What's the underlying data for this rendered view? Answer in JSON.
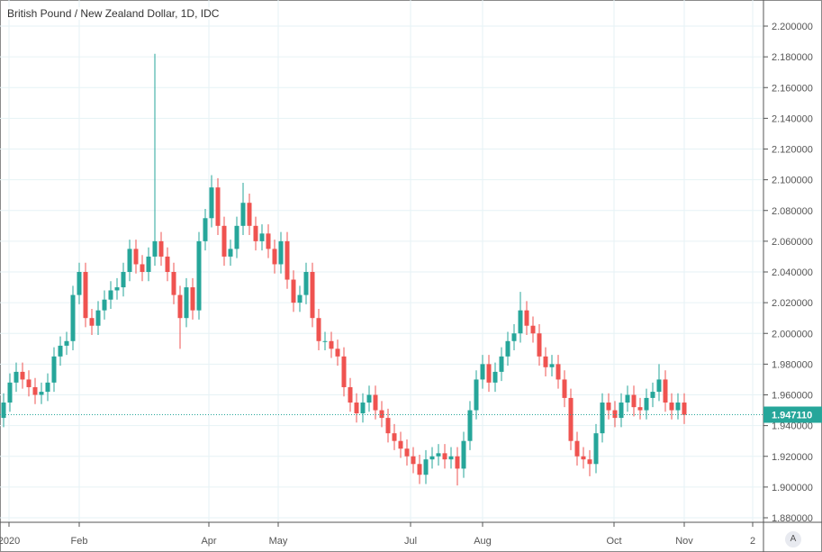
{
  "header": {
    "title": "British Pound / New Zealand Dollar, 1D, IDC"
  },
  "controls": {
    "auto_scale_label": "A"
  },
  "colors": {
    "up": "#26a69a",
    "down": "#ef5350",
    "grid": "#e6f2f5",
    "badge": "#26a69a"
  },
  "chart_data": {
    "type": "candlestick",
    "title": "British Pound / New Zealand Dollar, 1D, IDC",
    "ylim": [
      1.87,
      2.21
    ],
    "yticks": [
      "2.200000",
      "2.180000",
      "2.160000",
      "2.140000",
      "2.120000",
      "2.100000",
      "2.080000",
      "2.060000",
      "2.040000",
      "2.020000",
      "2.000000",
      "1.980000",
      "1.960000",
      "1.940000",
      "1.920000",
      "1.900000",
      "1.880000"
    ],
    "xticks": [
      "2020",
      "Feb",
      "Apr",
      "May",
      "Jul",
      "Aug",
      "Oct",
      "Nov",
      "2"
    ],
    "last_price": "1.947110",
    "first_open": 1.945,
    "close": [
      1.955,
      1.968,
      1.975,
      1.97,
      1.965,
      1.96,
      1.962,
      1.968,
      1.985,
      1.992,
      1.995,
      2.025,
      2.04,
      2.01,
      2.005,
      2.015,
      2.022,
      2.028,
      2.03,
      2.04,
      2.055,
      2.045,
      2.04,
      2.05,
      2.06,
      2.05,
      2.04,
      2.025,
      2.01,
      2.03,
      2.015,
      2.06,
      2.075,
      2.095,
      2.07,
      2.05,
      2.055,
      2.07,
      2.085,
      2.07,
      2.06,
      2.065,
      2.055,
      2.045,
      2.06,
      2.035,
      2.02,
      2.025,
      2.04,
      2.01,
      1.995,
      1.995,
      1.99,
      1.985,
      1.965,
      1.955,
      1.948,
      1.955,
      1.96,
      1.95,
      1.945,
      1.935,
      1.93,
      1.925,
      1.92,
      1.915,
      1.908,
      1.918,
      1.92,
      1.922,
      1.918,
      1.92,
      1.912,
      1.93,
      1.95,
      1.97,
      1.98,
      1.968,
      1.975,
      1.985,
      1.995,
      2.0,
      2.015,
      2.005,
      2.0,
      1.985,
      1.978,
      1.98,
      1.97,
      1.958,
      1.93,
      1.92,
      1.918,
      1.915,
      1.935,
      1.955,
      1.95,
      1.945,
      1.955,
      1.96,
      1.952,
      1.95,
      1.958,
      1.962,
      1.97,
      1.955,
      1.95,
      1.955,
      1.947
    ],
    "extremes": [
      {
        "index": 24,
        "high": 2.182
      },
      {
        "index": 28,
        "low": 1.99
      },
      {
        "index": 33,
        "high": 2.103
      },
      {
        "index": 38,
        "high": 2.098
      },
      {
        "index": 66,
        "low": 1.902
      },
      {
        "index": 72,
        "low": 1.901
      },
      {
        "index": 82,
        "high": 2.027
      },
      {
        "index": 93,
        "low": 1.907
      },
      {
        "index": 104,
        "high": 1.98
      }
    ]
  }
}
